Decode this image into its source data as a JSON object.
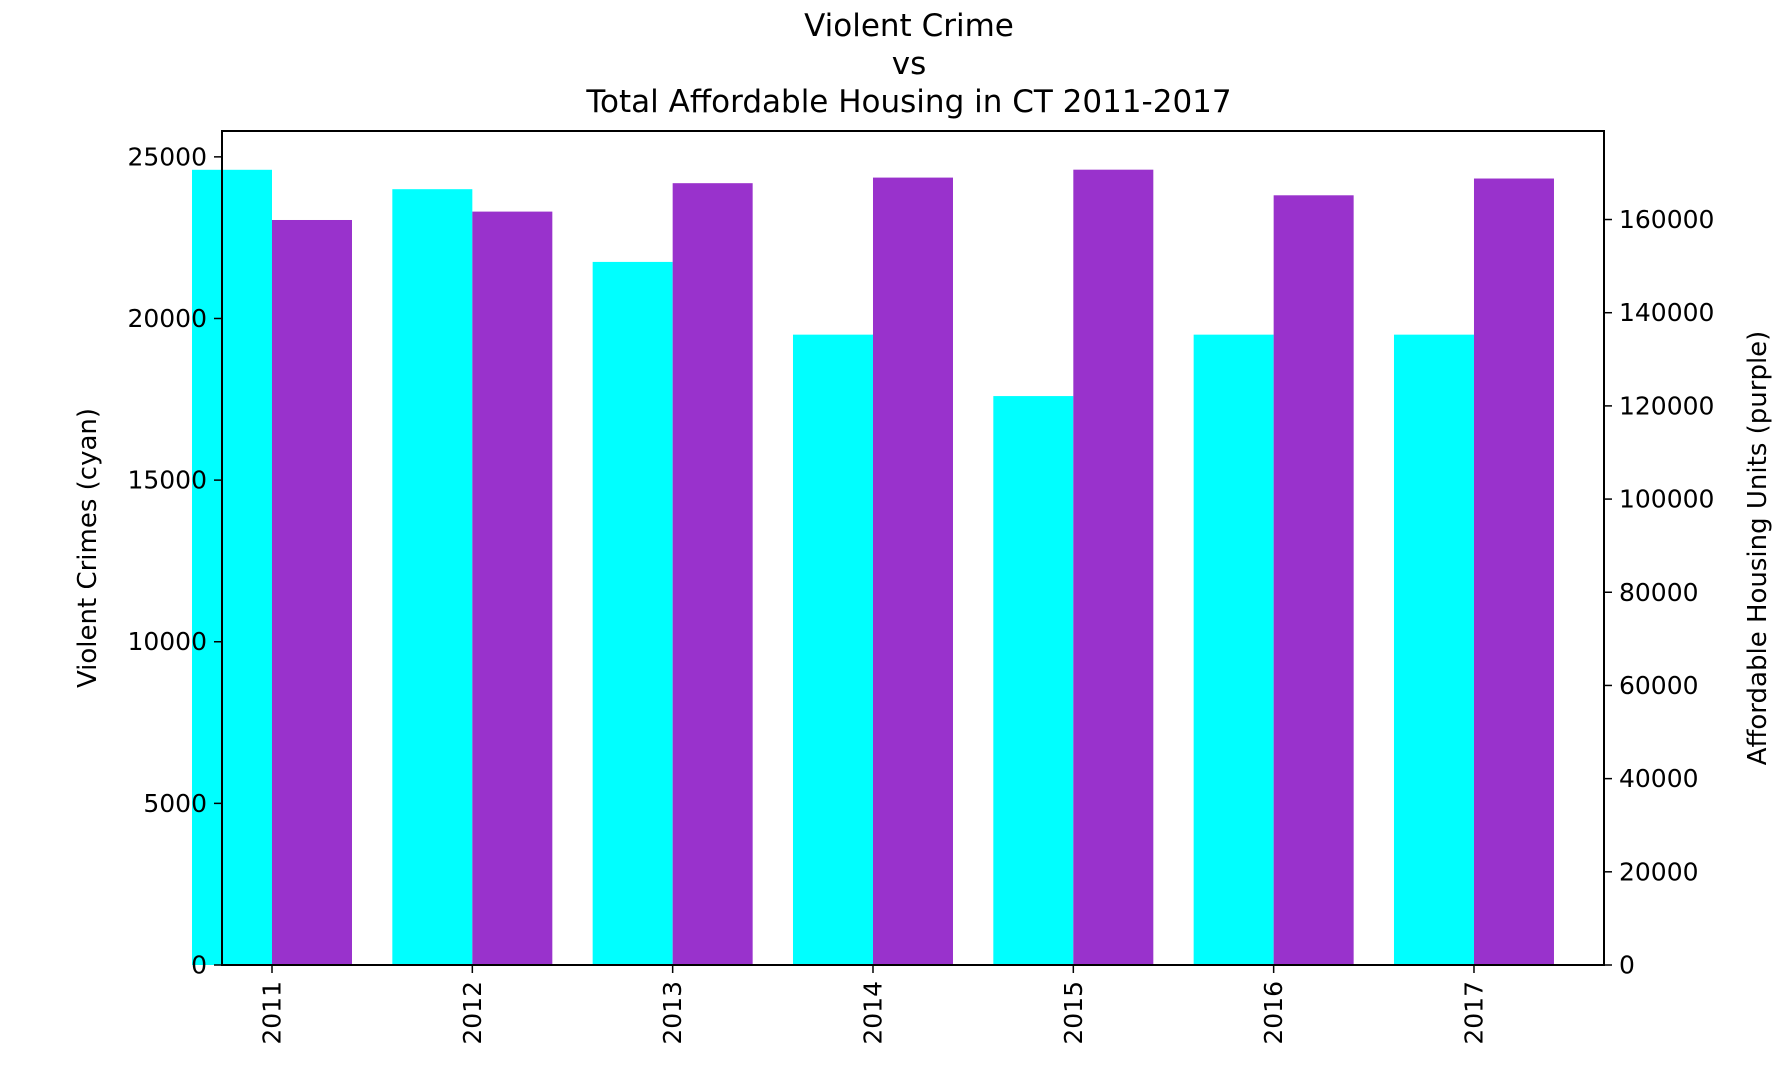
{
  "chart_data": {
    "type": "bar",
    "title_lines": [
      "Violent Crime",
      "vs",
      "Total Affordable Housing in CT 2011-2017"
    ],
    "categories": [
      "2011",
      "2012",
      "2013",
      "2014",
      "2015",
      "2016",
      "2017"
    ],
    "series": [
      {
        "name": "Violent Crimes (cyan)",
        "axis": "left",
        "color": "#00ffff",
        "values": [
          24600,
          24000,
          21750,
          19500,
          17600,
          19500,
          19500
        ]
      },
      {
        "name": "Affordable Housing Units (purple)",
        "axis": "right",
        "color": "#9932cc",
        "values": [
          159900,
          161700,
          167800,
          169000,
          170700,
          165200,
          168800
        ]
      }
    ],
    "ylabel_left": "Violent Crimes (cyan)",
    "ylabel_right": "Affordable Housing Units (purple)",
    "ylim_left": [
      0,
      25800
    ],
    "ylim_right": [
      0,
      179000
    ],
    "yticks_left": [
      "0",
      "5000",
      "10000",
      "15000",
      "20000",
      "25000"
    ],
    "yticks_right": [
      "0",
      "20000",
      "40000",
      "60000",
      "80000",
      "100000",
      "120000",
      "140000",
      "160000"
    ],
    "grid": false,
    "legend": "none"
  }
}
